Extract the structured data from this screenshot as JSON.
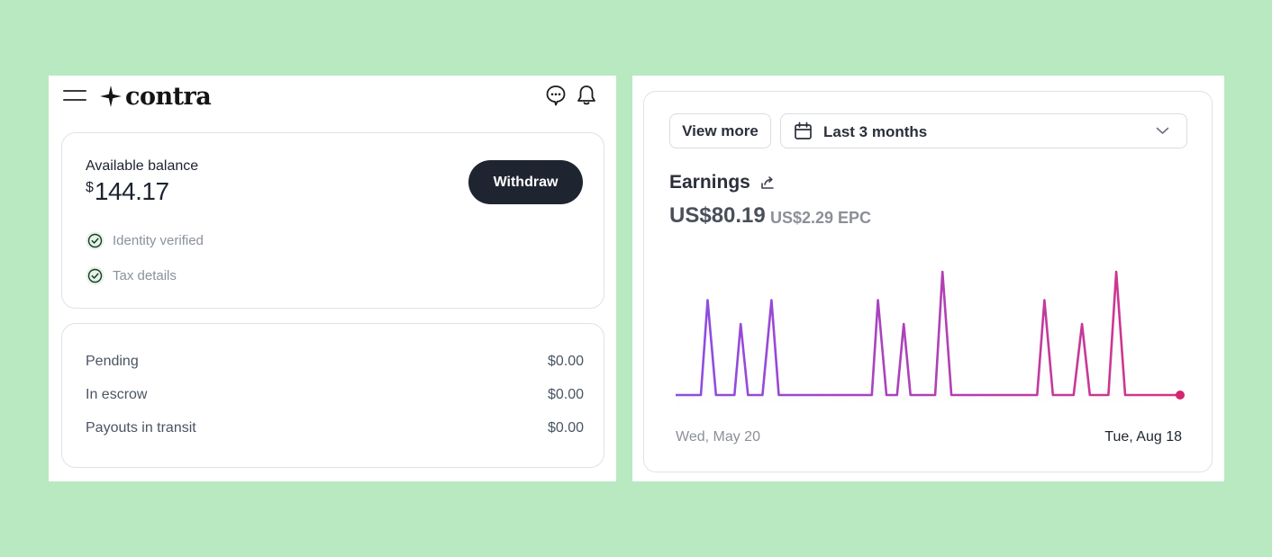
{
  "contra": {
    "brand_name": "contra",
    "balance": {
      "label": "Available balance",
      "currency_symbol": "$",
      "amount": "144.17",
      "withdraw_label": "Withdraw",
      "checks": [
        {
          "label": "Identity verified",
          "status": "complete"
        },
        {
          "label": "Tax details",
          "status": "complete"
        }
      ]
    },
    "summary": [
      {
        "label": "Pending",
        "value": "$0.00"
      },
      {
        "label": "In escrow",
        "value": "$0.00"
      },
      {
        "label": "Payouts in transit",
        "value": "$0.00"
      }
    ]
  },
  "earnings": {
    "view_more_label": "View more",
    "range_label": "Last 3 months",
    "title": "Earnings",
    "total": "US$80.19",
    "epc": "US$2.29 EPC",
    "start_date": "Wed, May 20",
    "end_date": "Tue, Aug 18"
  },
  "chart_data": {
    "type": "line",
    "title": "Earnings",
    "x_start": "Wed, May 20",
    "x_end": "Tue, Aug 18",
    "x_range": [
      0,
      90
    ],
    "ylim": [
      0,
      13
    ],
    "grid": false,
    "legend": "none",
    "gradient_colors": [
      "#8a4ee6",
      "#d63384"
    ],
    "endpoint_color": "#d6246e",
    "series": [
      {
        "points": [
          [
            0,
            0
          ],
          [
            4.5,
            0
          ],
          [
            5.7,
            10
          ],
          [
            7.2,
            0
          ],
          [
            10.5,
            0
          ],
          [
            11.6,
            7.5
          ],
          [
            12.9,
            0
          ],
          [
            15.5,
            0
          ],
          [
            17.1,
            10
          ],
          [
            18.4,
            0
          ],
          [
            35,
            0
          ],
          [
            36.1,
            10
          ],
          [
            37.6,
            0
          ],
          [
            39.5,
            0
          ],
          [
            40.7,
            7.5
          ],
          [
            41.9,
            0
          ],
          [
            46.3,
            0
          ],
          [
            47.6,
            13
          ],
          [
            49.2,
            0
          ],
          [
            64.5,
            0
          ],
          [
            65.8,
            10
          ],
          [
            67.3,
            0
          ],
          [
            71,
            0
          ],
          [
            72.5,
            7.5
          ],
          [
            73.9,
            0
          ],
          [
            77.2,
            0
          ],
          [
            78.6,
            13
          ],
          [
            80.2,
            0
          ],
          [
            90,
            0
          ]
        ]
      }
    ]
  }
}
